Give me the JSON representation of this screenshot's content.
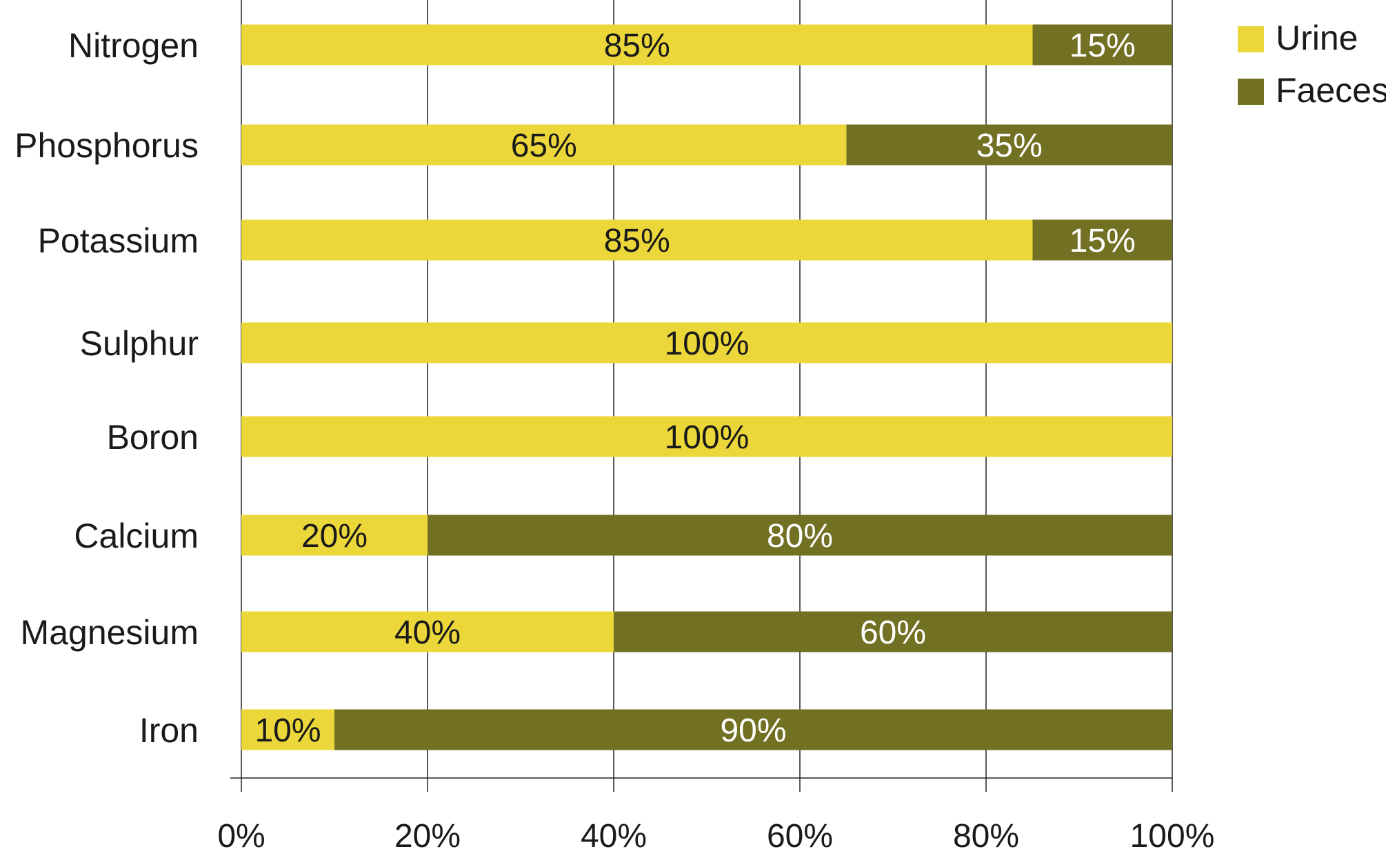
{
  "chart_data": {
    "type": "bar",
    "orientation": "horizontal",
    "stacked": true,
    "categories": [
      "Nitrogen",
      "Phosphorus",
      "Potassium",
      "Sulphur",
      "Boron",
      "Calcium",
      "Magnesium",
      "Iron"
    ],
    "series": [
      {
        "name": "Urine",
        "values": [
          85,
          65,
          85,
          100,
          100,
          20,
          40,
          10
        ],
        "color": "#ecd73a"
      },
      {
        "name": "Faeces",
        "values": [
          15,
          35,
          15,
          0,
          0,
          80,
          60,
          90
        ],
        "color": "#717023"
      }
    ],
    "data_labels": {
      "Urine": [
        "85%",
        "65%",
        "85%",
        "100%",
        "100%",
        "20%",
        "40%",
        "10%"
      ],
      "Faeces": [
        "15%",
        "35%",
        "15%",
        "",
        "",
        "80%",
        "60%",
        "90%"
      ]
    },
    "x_ticks": [
      "0%",
      "20%",
      "40%",
      "60%",
      "80%",
      "100%"
    ],
    "xlim": [
      0,
      100
    ],
    "grid": "vertical",
    "legend": "top-right"
  }
}
